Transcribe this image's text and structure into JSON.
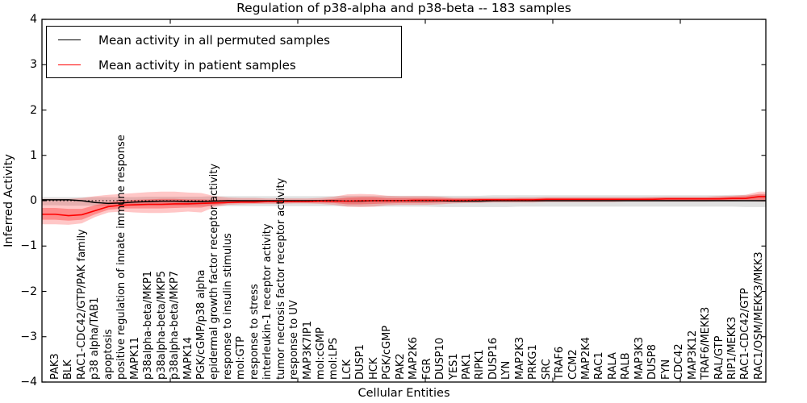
{
  "figure": {
    "title": "Regulation of p38-alpha and p38-beta -- 183 samples",
    "xlabel": "Cellular Entities",
    "ylabel": "Inferred Activity"
  },
  "legend": {
    "items": [
      {
        "label": "Mean activity in all permuted samples",
        "color": "#000000"
      },
      {
        "label": "Mean activity in patient samples",
        "color": "#ff0000"
      }
    ]
  },
  "chart_data": {
    "type": "line",
    "title": "Regulation of p38-alpha and p38-beta -- 183 samples",
    "xlabel": "Cellular Entities",
    "ylabel": "Inferred Activity",
    "ylim": [
      -4,
      4
    ],
    "yticks": [
      "4",
      "3",
      "2",
      "1",
      "0",
      "−1",
      "−2",
      "−3",
      "−4"
    ],
    "ytick_values": [
      4,
      3,
      2,
      1,
      0,
      -1,
      -2,
      -3,
      -4
    ],
    "grid": false,
    "legend_position": "upper left",
    "zero_line": {
      "y": 0,
      "style": "dotted",
      "color": "#000000"
    },
    "categories": [
      "PAK3",
      "BLK",
      "RAC1-CDC42/GTP/PAK family",
      "p38 alpha/TAB1",
      "apoptosis",
      "positive regulation of innate immune response",
      "MAPK11",
      "p38alpha-beta/MKP1",
      "p38alpha-beta/MKP5",
      "p38alpha-beta/MKP7",
      "MAPK14",
      "PGK/cGMP/p38 alpha",
      "epidermal growth factor receptor activity",
      "response to insulin stimulus",
      "mol:GTP",
      "response to stress",
      "interleukin-1 receptor activity",
      "tumor necrosis factor receptor activity",
      "response to UV",
      "MAP3K7IP1",
      "mol:cGMP",
      "mol:LPS",
      "LCK",
      "DUSP1",
      "HCK",
      "PGK/cGMP",
      "PAK2",
      "MAP2K6",
      "FGR",
      "DUSP10",
      "YES1",
      "PAK1",
      "RIPK1",
      "DUSP16",
      "LYN",
      "MAP2K3",
      "PRKG1",
      "SRC",
      "TRAF6",
      "CCM2",
      "MAP2K4",
      "RAC1",
      "RALA",
      "RALB",
      "MAP3K3",
      "DUSP8",
      "FYN",
      "CDC42",
      "MAP3K12",
      "TRAF6/MEKK3",
      "RAL/GTP",
      "RIP1/MEKK3",
      "RAC1-CDC42/GTP",
      "RAC1/OSM/MEKK3/MKK3"
    ],
    "series": [
      {
        "name": "Mean activity in all permuted samples",
        "color": "#000000",
        "style": "solid",
        "values": [
          0.02,
          0.02,
          0.0,
          -0.04,
          -0.06,
          -0.05,
          -0.03,
          -0.02,
          -0.01,
          -0.01,
          -0.02,
          -0.02,
          -0.01,
          0.0,
          0.0,
          0.0,
          0.0,
          0.0,
          0.0,
          0.0,
          0.0,
          0.0,
          -0.01,
          -0.01,
          0.0,
          0.0,
          0.0,
          0.0,
          0.0,
          0.0,
          -0.01,
          -0.01,
          -0.01,
          0.0,
          0.0,
          0.0,
          0.0,
          0.0,
          0.0,
          0.0,
          0.0,
          0.0,
          0.0,
          0.0,
          0.0,
          0.0,
          0.0,
          0.0,
          0.0,
          0.0,
          0.0,
          0.0,
          0.0,
          0.0
        ]
      },
      {
        "name": "Mean activity in patient samples",
        "color": "#ff0000",
        "style": "solid",
        "values": [
          -0.3,
          -0.33,
          -0.31,
          -0.22,
          -0.13,
          -0.1,
          -0.09,
          -0.08,
          -0.08,
          -0.07,
          -0.07,
          -0.06,
          -0.05,
          -0.04,
          -0.03,
          -0.03,
          -0.02,
          -0.02,
          -0.02,
          -0.02,
          -0.01,
          -0.01,
          -0.01,
          0.0,
          0.0,
          0.0,
          0.0,
          0.01,
          0.01,
          0.01,
          0.01,
          0.01,
          0.02,
          0.02,
          0.02,
          0.02,
          0.02,
          0.03,
          0.03,
          0.03,
          0.03,
          0.03,
          0.03,
          0.03,
          0.03,
          0.03,
          0.04,
          0.04,
          0.04,
          0.04,
          0.04,
          0.05,
          0.05,
          0.09
        ]
      }
    ],
    "bands": [
      {
        "name": "permuted-spread",
        "color": "#000000",
        "opacity": 0.12,
        "lo": [
          -0.1,
          -0.11,
          -0.11,
          -0.11,
          -0.12,
          -0.11,
          -0.11,
          -0.11,
          -0.11,
          -0.11,
          -0.11,
          -0.11,
          -0.12,
          -0.12,
          -0.12,
          -0.12,
          -0.12,
          -0.12,
          -0.12,
          -0.12,
          -0.12,
          -0.12,
          -0.13,
          -0.13,
          -0.13,
          -0.13,
          -0.13,
          -0.13,
          -0.13,
          -0.14,
          -0.14,
          -0.14,
          -0.14,
          -0.14,
          -0.14,
          -0.13,
          -0.13,
          -0.13,
          -0.13,
          -0.13,
          -0.13,
          -0.13,
          -0.13,
          -0.13,
          -0.13,
          -0.13,
          -0.13,
          -0.13,
          -0.13,
          -0.13,
          -0.13,
          -0.13,
          -0.14,
          -0.14
        ],
        "hi": [
          0.08,
          0.08,
          0.08,
          0.08,
          0.08,
          0.08,
          0.08,
          0.09,
          0.09,
          0.09,
          0.09,
          0.09,
          0.1,
          0.1,
          0.1,
          0.1,
          0.1,
          0.1,
          0.1,
          0.1,
          0.1,
          0.1,
          0.11,
          0.11,
          0.11,
          0.11,
          0.11,
          0.11,
          0.11,
          0.11,
          0.11,
          0.11,
          0.11,
          0.12,
          0.12,
          0.12,
          0.12,
          0.12,
          0.12,
          0.12,
          0.12,
          0.12,
          0.12,
          0.12,
          0.12,
          0.12,
          0.12,
          0.12,
          0.12,
          0.12,
          0.12,
          0.13,
          0.13,
          0.13
        ]
      },
      {
        "name": "patient-spread-outer",
        "color": "#ff0000",
        "opacity": 0.22,
        "lo": [
          -0.52,
          -0.53,
          -0.5,
          -0.36,
          -0.26,
          -0.24,
          -0.26,
          -0.27,
          -0.27,
          -0.26,
          -0.24,
          -0.26,
          -0.14,
          -0.09,
          -0.08,
          -0.07,
          -0.07,
          -0.07,
          -0.06,
          -0.06,
          -0.07,
          -0.09,
          -0.13,
          -0.14,
          -0.13,
          -0.1,
          -0.09,
          -0.09,
          -0.09,
          -0.08,
          -0.06,
          -0.05,
          -0.05,
          -0.04,
          -0.04,
          -0.04,
          -0.04,
          -0.03,
          -0.03,
          -0.03,
          -0.03,
          -0.03,
          -0.03,
          -0.02,
          -0.02,
          -0.02,
          -0.02,
          -0.02,
          -0.02,
          -0.02,
          -0.01,
          -0.01,
          -0.01,
          -0.02
        ],
        "hi": [
          0.04,
          0.04,
          0.06,
          0.1,
          0.13,
          0.15,
          0.17,
          0.19,
          0.2,
          0.2,
          0.18,
          0.17,
          0.1,
          0.07,
          0.06,
          0.06,
          0.05,
          0.05,
          0.05,
          0.05,
          0.06,
          0.09,
          0.14,
          0.15,
          0.14,
          0.11,
          0.1,
          0.1,
          0.1,
          0.09,
          0.07,
          0.07,
          0.07,
          0.07,
          0.07,
          0.07,
          0.07,
          0.08,
          0.08,
          0.08,
          0.08,
          0.08,
          0.08,
          0.08,
          0.08,
          0.08,
          0.09,
          0.09,
          0.09,
          0.09,
          0.1,
          0.11,
          0.13,
          0.2
        ]
      },
      {
        "name": "patient-spread-inner",
        "color": "#ff0000",
        "opacity": 0.3,
        "lo": [
          -0.42,
          -0.44,
          -0.42,
          -0.3,
          -0.2,
          -0.17,
          -0.17,
          -0.17,
          -0.17,
          -0.16,
          -0.15,
          -0.15,
          -0.1,
          -0.06,
          -0.05,
          -0.05,
          -0.04,
          -0.04,
          -0.04,
          -0.04,
          -0.04,
          -0.05,
          -0.08,
          -0.08,
          -0.07,
          -0.06,
          -0.05,
          -0.05,
          -0.05,
          -0.04,
          -0.03,
          -0.03,
          -0.02,
          -0.02,
          -0.02,
          -0.02,
          -0.02,
          -0.01,
          -0.01,
          -0.01,
          -0.01,
          -0.01,
          0.0,
          0.0,
          0.0,
          0.0,
          0.0,
          0.0,
          0.01,
          0.01,
          0.01,
          0.01,
          0.02,
          0.02
        ],
        "hi": [
          -0.16,
          -0.18,
          -0.18,
          -0.1,
          -0.04,
          0.0,
          0.02,
          0.03,
          0.04,
          0.04,
          0.03,
          0.03,
          0.02,
          0.02,
          0.01,
          0.01,
          0.01,
          0.01,
          0.01,
          0.01,
          0.02,
          0.04,
          0.07,
          0.08,
          0.08,
          0.06,
          0.06,
          0.06,
          0.06,
          0.06,
          0.05,
          0.05,
          0.05,
          0.05,
          0.05,
          0.06,
          0.06,
          0.06,
          0.06,
          0.06,
          0.06,
          0.06,
          0.06,
          0.06,
          0.06,
          0.07,
          0.07,
          0.07,
          0.07,
          0.07,
          0.08,
          0.09,
          0.1,
          0.15
        ]
      }
    ]
  }
}
